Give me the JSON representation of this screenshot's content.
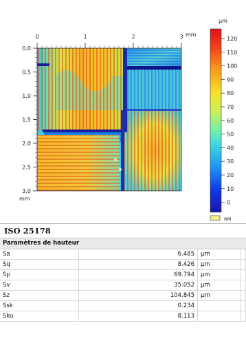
{
  "map": {
    "x_ticks": [
      "0",
      "1",
      "2",
      "3"
    ],
    "x_unit": "mm",
    "y_ticks": [
      "0.0",
      "0.5",
      "1.0",
      "1.5",
      "2.0",
      "2.5",
      "3.0"
    ],
    "y_unit": "mm",
    "colorbar_unit": "µm",
    "colorbar_ticks": [
      "120",
      "110",
      "100",
      "90",
      "80",
      "70",
      "60",
      "50",
      "40",
      "30",
      "20",
      "10",
      "0"
    ],
    "nm_label": "NM",
    "nm_color": "#f4f08c"
  },
  "params": {
    "standard": "ISO 25178",
    "group": "Paramètres de hauteur",
    "rows": [
      {
        "name": "Sa",
        "value": "6.485",
        "unit": "µm"
      },
      {
        "name": "Sq",
        "value": "8.426",
        "unit": "µm"
      },
      {
        "name": "Sp",
        "value": "69.794",
        "unit": "µm"
      },
      {
        "name": "Sv",
        "value": "35.052",
        "unit": "µm"
      },
      {
        "name": "Sz",
        "value": "104.845",
        "unit": "µm"
      },
      {
        "name": "Ssk",
        "value": "0.234",
        "unit": ""
      },
      {
        "name": "Sku",
        "value": "8.113",
        "unit": ""
      }
    ]
  }
}
